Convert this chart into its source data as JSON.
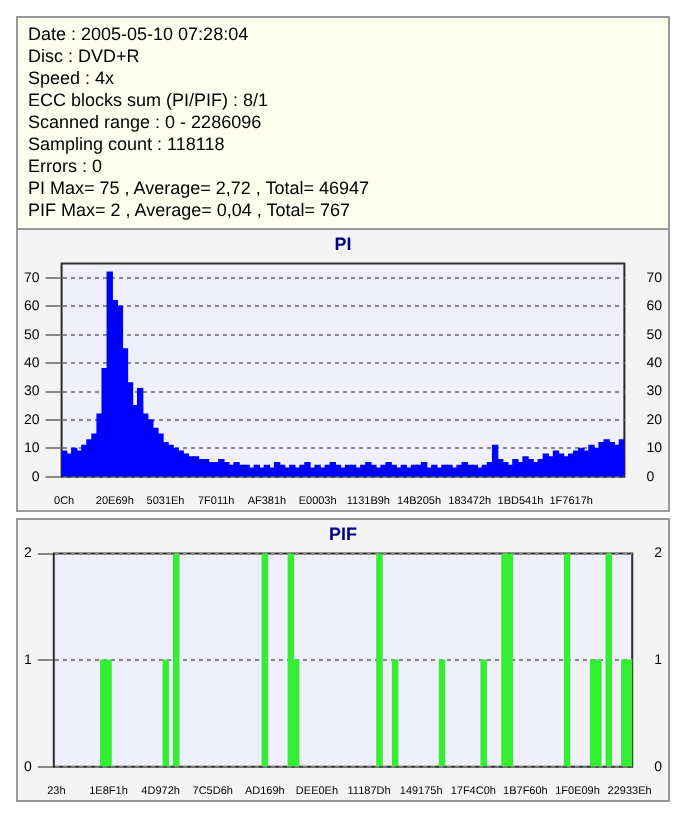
{
  "chart_data": [
    {
      "type": "bar",
      "title": "PI",
      "annotations": [
        "Date : 2005-05-10 07:28:04",
        "Disc : DVD+R",
        "Speed : 4x",
        "ECC blocks sum (PI/PIF) : 8/1",
        "Scanned range : 0 - 2286096",
        "Sampling count : 118118",
        "Errors : 0",
        "PI Max= 75 , Average= 2,72 , Total= 46947",
        "PIF Max= 2 , Average= 0,04 , Total= 767"
      ],
      "categories": [
        "0Ch",
        null,
        null,
        null,
        null,
        null,
        null,
        null,
        null,
        null,
        "20E69h",
        null,
        null,
        null,
        null,
        null,
        null,
        null,
        null,
        null,
        "5031Eh",
        null,
        null,
        null,
        null,
        null,
        null,
        null,
        null,
        null,
        "7F011h",
        null,
        null,
        null,
        null,
        null,
        null,
        null,
        null,
        null,
        "AF381h",
        null,
        null,
        null,
        null,
        null,
        null,
        null,
        null,
        null,
        "E0003h",
        null,
        null,
        null,
        null,
        null,
        null,
        null,
        null,
        null,
        "1131B9h",
        null,
        null,
        null,
        null,
        null,
        null,
        null,
        null,
        null,
        "14B205h",
        null,
        null,
        null,
        null,
        null,
        null,
        null,
        null,
        null,
        "183472h",
        null,
        null,
        null,
        null,
        null,
        null,
        null,
        null,
        null,
        "1BD541h",
        null,
        null,
        null,
        null,
        null,
        null,
        null,
        null,
        null,
        "1F7617h",
        null,
        null,
        null,
        null,
        null,
        null,
        null,
        null,
        null,
        null
      ],
      "values": [
        9,
        8,
        10,
        9,
        11,
        13,
        15,
        22,
        38,
        72,
        62,
        60,
        45,
        33,
        25,
        31,
        22,
        20,
        17,
        15,
        12,
        11,
        10,
        9,
        8,
        7,
        7,
        6,
        6,
        5,
        5,
        6,
        5,
        4,
        5,
        4,
        4,
        3,
        4,
        3,
        4,
        3,
        5,
        4,
        3,
        4,
        3,
        4,
        5,
        3,
        4,
        3,
        4,
        5,
        4,
        3,
        4,
        4,
        3,
        4,
        5,
        4,
        3,
        4,
        5,
        4,
        3,
        4,
        3,
        4,
        4,
        5,
        3,
        4,
        3,
        4,
        4,
        3,
        4,
        5,
        4,
        4,
        3,
        4,
        5,
        11,
        6,
        5,
        4,
        6,
        5,
        7,
        6,
        5,
        6,
        8,
        7,
        9,
        8,
        7,
        8,
        9,
        10,
        9,
        11,
        10,
        12,
        13,
        12,
        11,
        13
      ],
      "color": "#0000ff",
      "ylim": [
        0,
        75
      ],
      "yticks": [
        0,
        10,
        20,
        30,
        40,
        50,
        60,
        70
      ],
      "y2lim": [
        0,
        75
      ],
      "y2ticks": [
        0,
        10,
        20,
        30,
        40,
        50,
        60,
        70
      ],
      "grid": "y"
    },
    {
      "type": "bar",
      "title": "PIF",
      "categories": [
        "23h",
        null,
        null,
        null,
        null,
        null,
        null,
        null,
        null,
        null,
        "1E8F1h",
        null,
        null,
        null,
        null,
        null,
        null,
        null,
        null,
        null,
        "4D972h",
        null,
        null,
        null,
        null,
        null,
        null,
        null,
        null,
        null,
        "7C5D6h",
        null,
        null,
        null,
        null,
        null,
        null,
        null,
        null,
        null,
        "AD169h",
        null,
        null,
        null,
        null,
        null,
        null,
        null,
        null,
        null,
        "DEE0Eh",
        null,
        null,
        null,
        null,
        null,
        null,
        null,
        null,
        null,
        "11187Dh",
        null,
        null,
        null,
        null,
        null,
        null,
        null,
        null,
        null,
        "149175h",
        null,
        null,
        null,
        null,
        null,
        null,
        null,
        null,
        null,
        "17F4C0h",
        null,
        null,
        null,
        null,
        null,
        null,
        null,
        null,
        null,
        "1B7F60h",
        null,
        null,
        null,
        null,
        null,
        null,
        null,
        null,
        null,
        "1F0E09h",
        null,
        null,
        null,
        null,
        null,
        null,
        null,
        null,
        null,
        "22933Eh"
      ],
      "values": [
        0,
        0,
        0,
        0,
        0,
        0,
        0,
        0,
        0,
        1,
        1,
        0,
        0,
        0,
        0,
        0,
        0,
        0,
        0,
        0,
        0,
        1,
        0,
        2,
        0,
        0,
        0,
        0,
        0,
        0,
        0,
        0,
        0,
        0,
        0,
        0,
        0,
        0,
        0,
        0,
        2,
        0,
        0,
        0,
        0,
        2,
        1,
        0,
        0,
        0,
        0,
        0,
        0,
        0,
        0,
        0,
        0,
        0,
        0,
        0,
        0,
        0,
        2,
        0,
        0,
        1,
        0,
        0,
        0,
        0,
        0,
        0,
        0,
        0,
        1,
        0,
        0,
        0,
        0,
        0,
        0,
        0,
        1,
        0,
        0,
        0,
        2,
        2,
        0,
        0,
        0,
        0,
        0,
        0,
        0,
        0,
        0,
        0,
        2,
        0,
        0,
        0,
        0,
        1,
        1,
        0,
        2,
        0,
        0,
        1,
        1
      ],
      "color": "#33ee33",
      "ylim": [
        0,
        2
      ],
      "yticks": [
        0,
        1,
        2
      ],
      "y2lim": [
        0,
        2
      ],
      "y2ticks": [
        0,
        1,
        2
      ],
      "grid": "y"
    }
  ]
}
